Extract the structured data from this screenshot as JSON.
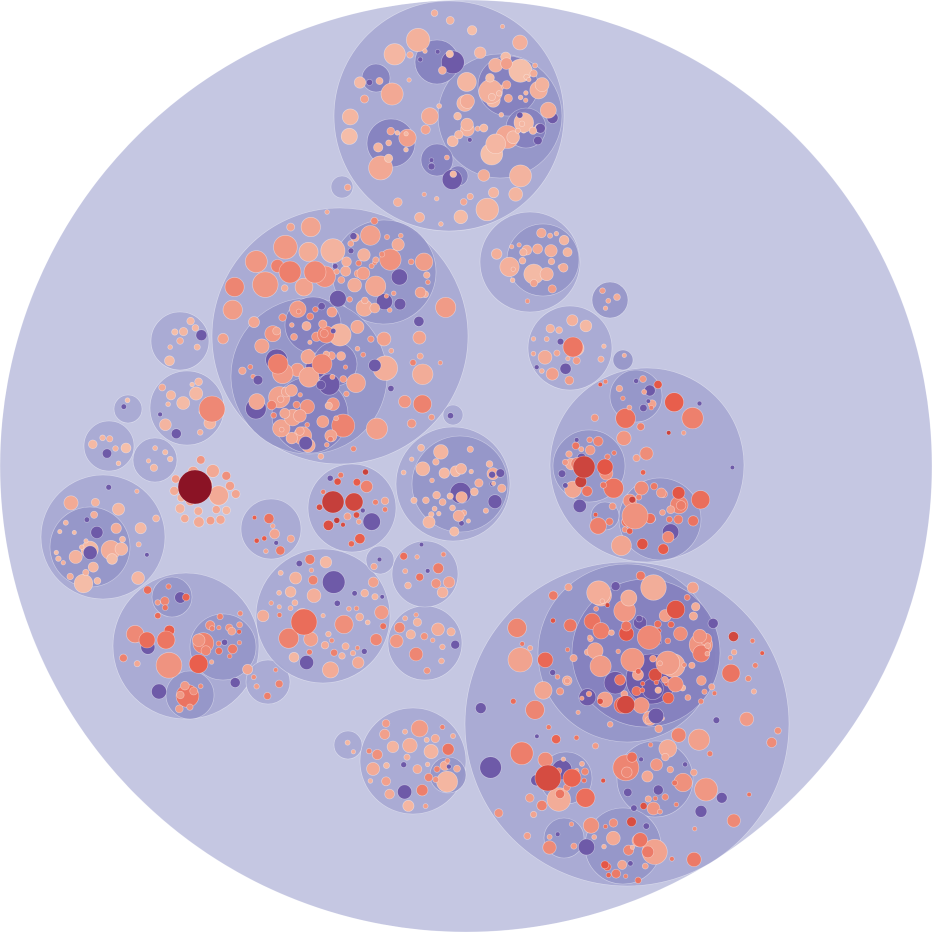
{
  "chart_data": {
    "type": "circle-packing",
    "title": "",
    "value_scale": {
      "domain": [
        0,
        1
      ],
      "low": "#f6c9b4",
      "high": "#8b1325"
    },
    "depth_colors": [
      "#c5c7e2",
      "#a7a8d3",
      "#9595c8",
      "#8480be",
      "#6e5aa8"
    ],
    "groups": [
      {
        "id": "top-cluster",
        "depth": 1,
        "heat": [
          0.15,
          0.2,
          0.12,
          0.18,
          0.1
        ]
      },
      {
        "id": "upper-left-large",
        "depth": 1,
        "heat": [
          0.35,
          0.3,
          0.2,
          0.25
        ]
      },
      {
        "id": "upper-right-small",
        "depth": 1,
        "heat": [
          0.25,
          0.15
        ]
      },
      {
        "id": "mid-left-ring",
        "depth": 1,
        "heat": [
          0.12,
          0.1,
          0.15
        ]
      },
      {
        "id": "center-dark-node",
        "depth": 0,
        "heat": [
          1.0,
          0.3,
          0.2
        ]
      },
      {
        "id": "center-red-cluster",
        "depth": 1,
        "heat": [
          0.7,
          0.6,
          0.2
        ]
      },
      {
        "id": "center-right-dense",
        "depth": 1,
        "heat": [
          0.15,
          0.1
        ]
      },
      {
        "id": "right-cluster",
        "depth": 1,
        "heat": [
          0.65,
          0.55,
          0.35,
          0.3
        ]
      },
      {
        "id": "lower-left",
        "depth": 1,
        "heat": [
          0.5,
          0.4,
          0.3
        ]
      },
      {
        "id": "lower-center",
        "depth": 1,
        "heat": [
          0.45,
          0.2,
          0.15
        ]
      },
      {
        "id": "bottom-right-large",
        "depth": 1,
        "heat": [
          0.62,
          0.45,
          0.3,
          0.2
        ]
      },
      {
        "id": "bottom-center",
        "depth": 1,
        "heat": [
          0.4,
          0.15
        ]
      }
    ]
  }
}
